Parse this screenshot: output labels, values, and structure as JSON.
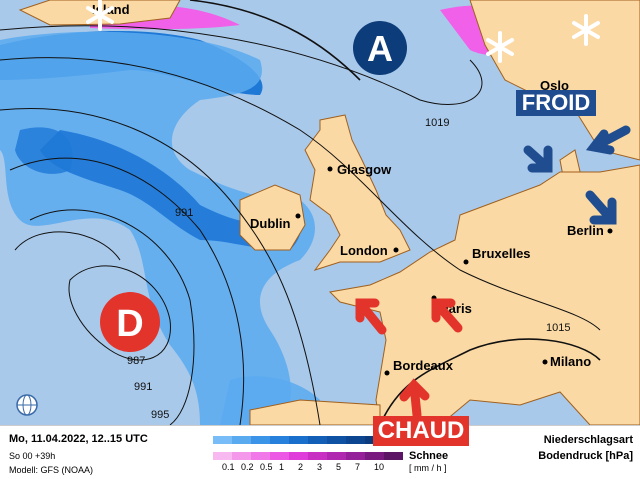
{
  "map": {
    "high_label": "A",
    "low_label": "D",
    "cold_label": "FROID",
    "warm_label": "CHAUD",
    "cities": [
      "Island",
      "Oslo",
      "Glasgow",
      "Dublin",
      "London",
      "Bruxelles",
      "Berlin",
      "Paris",
      "Bordeaux",
      "Milano"
    ],
    "isobar_labels": [
      "1019",
      "991",
      "987",
      "991",
      "995",
      "1015"
    ],
    "colors": {
      "ocean": "#a9c9ea",
      "land": "#fbd9a4",
      "high": "#0d3c7a",
      "low": "#e3342c",
      "cold_box": "#1f4d8f",
      "warm_box": "#e3342c",
      "rain_light": "#5aaaf0",
      "rain_heavy": "#1e78d6",
      "snow": "#f060e8"
    },
    "icons": [
      "snowflake-icon",
      "globe-icon",
      "arrow-icon"
    ]
  },
  "legend": {
    "date": "Mo, 11.04.2022, 12..15 UTC",
    "run": "So 00 +39h",
    "model": "Modell: GFS (NOAA)",
    "snow_label": "Schnee",
    "unit": "[ mm / h ]",
    "ticks": [
      "0.1",
      "0.2",
      "0.5",
      "1",
      "2",
      "3",
      "5",
      "7",
      "10"
    ],
    "title1": "Niederschlagsart",
    "title2": "Bodendruck [hPa]",
    "rain_colors": [
      "#78bcf8",
      "#5aaaf0",
      "#3c94e8",
      "#2680dc",
      "#1a6fcc",
      "#135fb8",
      "#0f52a4",
      "#0d4690",
      "#0b3b7c"
    ],
    "snow_colors": [
      "#f8b8f0",
      "#f498ec",
      "#f078e8",
      "#ec58e4",
      "#e03cdc",
      "#c830c4",
      "#b028b0",
      "#94209a",
      "#781a80",
      "#5c1464"
    ]
  }
}
